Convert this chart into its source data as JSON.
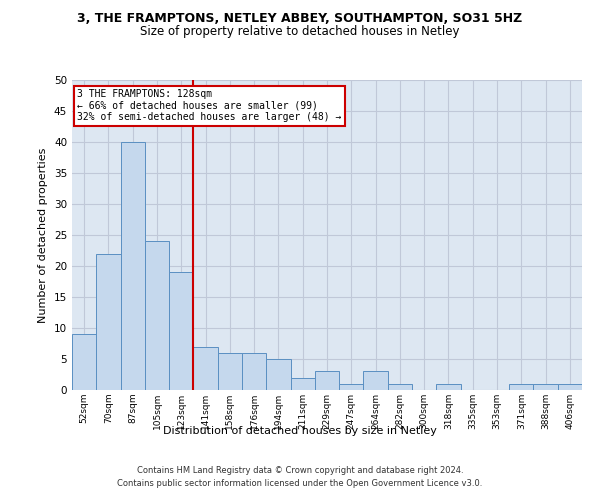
{
  "title1": "3, THE FRAMPTONS, NETLEY ABBEY, SOUTHAMPTON, SO31 5HZ",
  "title2": "Size of property relative to detached houses in Netley",
  "xlabel": "Distribution of detached houses by size in Netley",
  "ylabel": "Number of detached properties",
  "categories": [
    "52sqm",
    "70sqm",
    "87sqm",
    "105sqm",
    "123sqm",
    "141sqm",
    "158sqm",
    "176sqm",
    "194sqm",
    "211sqm",
    "229sqm",
    "247sqm",
    "264sqm",
    "282sqm",
    "300sqm",
    "318sqm",
    "335sqm",
    "353sqm",
    "371sqm",
    "388sqm",
    "406sqm"
  ],
  "values": [
    9,
    22,
    40,
    24,
    19,
    7,
    6,
    6,
    5,
    2,
    3,
    1,
    3,
    1,
    0,
    1,
    0,
    0,
    1,
    1,
    1
  ],
  "bar_color": "#c5d8ed",
  "bar_edge_color": "#5a8fc2",
  "property_line_x": 4.5,
  "annotation_line1": "3 THE FRAMPTONS: 128sqm",
  "annotation_line2": "← 66% of detached houses are smaller (99)",
  "annotation_line3": "32% of semi-detached houses are larger (48) →",
  "annotation_box_color": "#ffffff",
  "annotation_box_edge_color": "#cc0000",
  "vline_color": "#cc0000",
  "ylim": [
    0,
    50
  ],
  "yticks": [
    0,
    5,
    10,
    15,
    20,
    25,
    30,
    35,
    40,
    45,
    50
  ],
  "grid_color": "#c0c8d8",
  "background_color": "#dde7f2",
  "fig_background": "#ffffff",
  "footer1": "Contains HM Land Registry data © Crown copyright and database right 2024.",
  "footer2": "Contains public sector information licensed under the Open Government Licence v3.0."
}
